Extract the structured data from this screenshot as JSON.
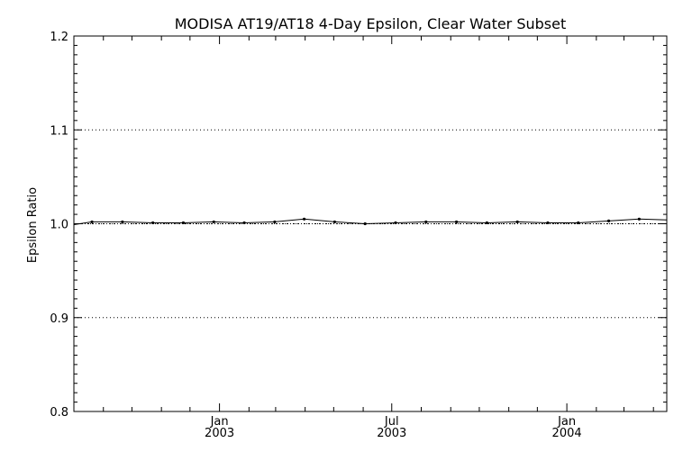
{
  "chart_data": {
    "type": "line",
    "title": "MODISA AT19/AT18 4-Day Epsilon, Clear Water Subset",
    "xlabel": "",
    "ylabel": "Epsilon Ratio",
    "xlim": [
      "2002-08-01",
      "2004-04-15"
    ],
    "ylim": [
      0.8,
      1.2
    ],
    "grid": "horizontal dotted lines at major y ticks",
    "legend": "none",
    "y_ticks": [
      {
        "value": 0.8,
        "label": "0.8"
      },
      {
        "value": 0.9,
        "label": "0.9"
      },
      {
        "value": 1.0,
        "label": "1.0"
      },
      {
        "value": 1.1,
        "label": "1.1"
      },
      {
        "value": 1.2,
        "label": "1.2"
      }
    ],
    "x_ticks": [
      {
        "date": "2003-01-01",
        "label": "Jan",
        "year": "2003"
      },
      {
        "date": "2003-07-01",
        "label": "Jul",
        "year": "2003"
      },
      {
        "date": "2004-01-01",
        "label": "Jan",
        "year": "2004"
      }
    ],
    "x_minor_ticks": [
      "2002-09-01",
      "2002-10-01",
      "2002-11-01",
      "2002-12-01",
      "2003-02-01",
      "2003-03-01",
      "2003-04-01",
      "2003-05-01",
      "2003-06-01",
      "2003-08-01",
      "2003-09-01",
      "2003-10-01",
      "2003-11-01",
      "2003-12-01",
      "2004-02-01",
      "2004-03-01",
      "2004-04-01"
    ],
    "series": [
      {
        "x": [
          "2002-08-01",
          "2002-08-20",
          "2002-09-21",
          "2002-10-23",
          "2002-11-24",
          "2002-12-26",
          "2003-01-27",
          "2003-02-28",
          "2003-03-31",
          "2003-05-02",
          "2003-06-03",
          "2003-07-05",
          "2003-08-06",
          "2003-09-07",
          "2003-10-09",
          "2003-11-10",
          "2003-12-12",
          "2004-01-13",
          "2004-02-14",
          "2004-03-17",
          "2004-04-15"
        ],
        "y": [
          0.999,
          1.002,
          1.002,
          1.001,
          1.001,
          1.002,
          1.001,
          1.002,
          1.005,
          1.002,
          1.0,
          1.001,
          1.002,
          1.002,
          1.001,
          1.002,
          1.001,
          1.001,
          1.003,
          1.005,
          1.004
        ]
      }
    ],
    "reference_line": 1.0,
    "colors": {
      "line": "#000000",
      "grid": "#000000"
    }
  }
}
